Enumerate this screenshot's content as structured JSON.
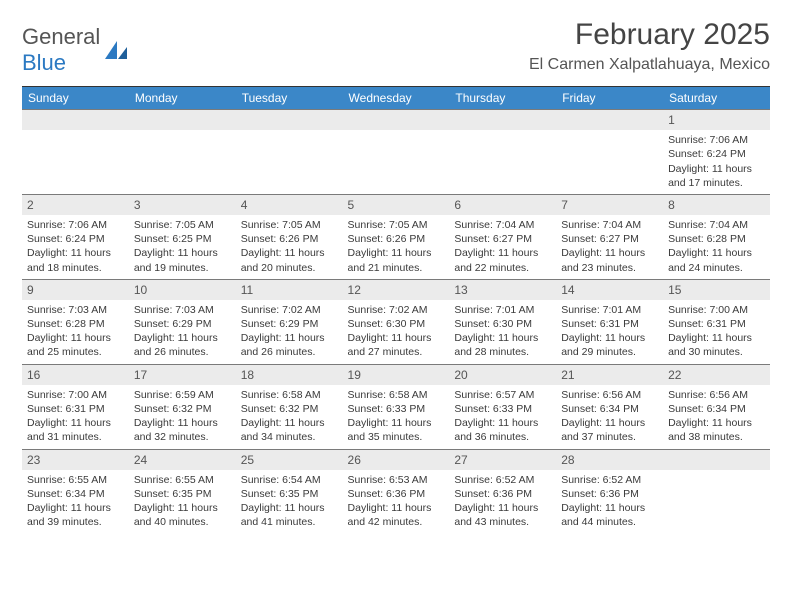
{
  "logo": {
    "text1": "General",
    "text2": "Blue"
  },
  "header": {
    "month_title": "February 2025",
    "location": "El Carmen Xalpatlahuaya, Mexico"
  },
  "days": [
    "Sunday",
    "Monday",
    "Tuesday",
    "Wednesday",
    "Thursday",
    "Friday",
    "Saturday"
  ],
  "colors": {
    "header_bg": "#3b87c8",
    "header_text": "#ffffff",
    "daynum_bg": "#ebebeb",
    "border": "#7a7a7a",
    "body_text": "#3a3a3a"
  },
  "weeks": [
    [
      {
        "n": "",
        "sr": "",
        "ss": "",
        "dl": ""
      },
      {
        "n": "",
        "sr": "",
        "ss": "",
        "dl": ""
      },
      {
        "n": "",
        "sr": "",
        "ss": "",
        "dl": ""
      },
      {
        "n": "",
        "sr": "",
        "ss": "",
        "dl": ""
      },
      {
        "n": "",
        "sr": "",
        "ss": "",
        "dl": ""
      },
      {
        "n": "",
        "sr": "",
        "ss": "",
        "dl": ""
      },
      {
        "n": "1",
        "sr": "Sunrise: 7:06 AM",
        "ss": "Sunset: 6:24 PM",
        "dl": "Daylight: 11 hours and 17 minutes."
      }
    ],
    [
      {
        "n": "2",
        "sr": "Sunrise: 7:06 AM",
        "ss": "Sunset: 6:24 PM",
        "dl": "Daylight: 11 hours and 18 minutes."
      },
      {
        "n": "3",
        "sr": "Sunrise: 7:05 AM",
        "ss": "Sunset: 6:25 PM",
        "dl": "Daylight: 11 hours and 19 minutes."
      },
      {
        "n": "4",
        "sr": "Sunrise: 7:05 AM",
        "ss": "Sunset: 6:26 PM",
        "dl": "Daylight: 11 hours and 20 minutes."
      },
      {
        "n": "5",
        "sr": "Sunrise: 7:05 AM",
        "ss": "Sunset: 6:26 PM",
        "dl": "Daylight: 11 hours and 21 minutes."
      },
      {
        "n": "6",
        "sr": "Sunrise: 7:04 AM",
        "ss": "Sunset: 6:27 PM",
        "dl": "Daylight: 11 hours and 22 minutes."
      },
      {
        "n": "7",
        "sr": "Sunrise: 7:04 AM",
        "ss": "Sunset: 6:27 PM",
        "dl": "Daylight: 11 hours and 23 minutes."
      },
      {
        "n": "8",
        "sr": "Sunrise: 7:04 AM",
        "ss": "Sunset: 6:28 PM",
        "dl": "Daylight: 11 hours and 24 minutes."
      }
    ],
    [
      {
        "n": "9",
        "sr": "Sunrise: 7:03 AM",
        "ss": "Sunset: 6:28 PM",
        "dl": "Daylight: 11 hours and 25 minutes."
      },
      {
        "n": "10",
        "sr": "Sunrise: 7:03 AM",
        "ss": "Sunset: 6:29 PM",
        "dl": "Daylight: 11 hours and 26 minutes."
      },
      {
        "n": "11",
        "sr": "Sunrise: 7:02 AM",
        "ss": "Sunset: 6:29 PM",
        "dl": "Daylight: 11 hours and 26 minutes."
      },
      {
        "n": "12",
        "sr": "Sunrise: 7:02 AM",
        "ss": "Sunset: 6:30 PM",
        "dl": "Daylight: 11 hours and 27 minutes."
      },
      {
        "n": "13",
        "sr": "Sunrise: 7:01 AM",
        "ss": "Sunset: 6:30 PM",
        "dl": "Daylight: 11 hours and 28 minutes."
      },
      {
        "n": "14",
        "sr": "Sunrise: 7:01 AM",
        "ss": "Sunset: 6:31 PM",
        "dl": "Daylight: 11 hours and 29 minutes."
      },
      {
        "n": "15",
        "sr": "Sunrise: 7:00 AM",
        "ss": "Sunset: 6:31 PM",
        "dl": "Daylight: 11 hours and 30 minutes."
      }
    ],
    [
      {
        "n": "16",
        "sr": "Sunrise: 7:00 AM",
        "ss": "Sunset: 6:31 PM",
        "dl": "Daylight: 11 hours and 31 minutes."
      },
      {
        "n": "17",
        "sr": "Sunrise: 6:59 AM",
        "ss": "Sunset: 6:32 PM",
        "dl": "Daylight: 11 hours and 32 minutes."
      },
      {
        "n": "18",
        "sr": "Sunrise: 6:58 AM",
        "ss": "Sunset: 6:32 PM",
        "dl": "Daylight: 11 hours and 34 minutes."
      },
      {
        "n": "19",
        "sr": "Sunrise: 6:58 AM",
        "ss": "Sunset: 6:33 PM",
        "dl": "Daylight: 11 hours and 35 minutes."
      },
      {
        "n": "20",
        "sr": "Sunrise: 6:57 AM",
        "ss": "Sunset: 6:33 PM",
        "dl": "Daylight: 11 hours and 36 minutes."
      },
      {
        "n": "21",
        "sr": "Sunrise: 6:56 AM",
        "ss": "Sunset: 6:34 PM",
        "dl": "Daylight: 11 hours and 37 minutes."
      },
      {
        "n": "22",
        "sr": "Sunrise: 6:56 AM",
        "ss": "Sunset: 6:34 PM",
        "dl": "Daylight: 11 hours and 38 minutes."
      }
    ],
    [
      {
        "n": "23",
        "sr": "Sunrise: 6:55 AM",
        "ss": "Sunset: 6:34 PM",
        "dl": "Daylight: 11 hours and 39 minutes."
      },
      {
        "n": "24",
        "sr": "Sunrise: 6:55 AM",
        "ss": "Sunset: 6:35 PM",
        "dl": "Daylight: 11 hours and 40 minutes."
      },
      {
        "n": "25",
        "sr": "Sunrise: 6:54 AM",
        "ss": "Sunset: 6:35 PM",
        "dl": "Daylight: 11 hours and 41 minutes."
      },
      {
        "n": "26",
        "sr": "Sunrise: 6:53 AM",
        "ss": "Sunset: 6:36 PM",
        "dl": "Daylight: 11 hours and 42 minutes."
      },
      {
        "n": "27",
        "sr": "Sunrise: 6:52 AM",
        "ss": "Sunset: 6:36 PM",
        "dl": "Daylight: 11 hours and 43 minutes."
      },
      {
        "n": "28",
        "sr": "Sunrise: 6:52 AM",
        "ss": "Sunset: 6:36 PM",
        "dl": "Daylight: 11 hours and 44 minutes."
      },
      {
        "n": "",
        "sr": "",
        "ss": "",
        "dl": ""
      }
    ]
  ]
}
